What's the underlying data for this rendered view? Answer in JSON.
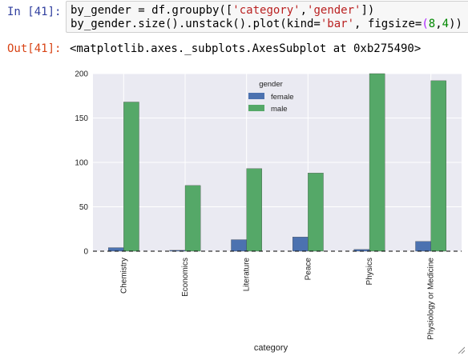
{
  "cell": {
    "in_prompt": "In [41]:",
    "code_line_1": {
      "prefix": "by_gender = df.groupby([",
      "str1": "'category'",
      "comma": ",",
      "str2": "'gender'",
      "suffix": "])"
    },
    "code_line_2": {
      "prefix": "by_gender.size().unstack().plot(kind=",
      "str1": "'bar'",
      "mid": ", figsize=",
      "eq": "=",
      "open": "(",
      "num1": "8",
      "comma": ",",
      "num2": "4",
      "close": "))"
    },
    "out_prompt": "Out[41]:",
    "output_text": "<matplotlib.axes._subplots.AxesSubplot at 0xb275490>"
  },
  "chart_data": {
    "type": "bar",
    "categories": [
      "Chemistry",
      "Economics",
      "Literature",
      "Peace",
      "Physics",
      "Physiology or Medicine"
    ],
    "series": [
      {
        "name": "female",
        "values": [
          4,
          1,
          13,
          16,
          2,
          11
        ],
        "color": "#4c72b0"
      },
      {
        "name": "male",
        "values": [
          168,
          74,
          93,
          88,
          200,
          192
        ],
        "color": "#55a868"
      }
    ],
    "xlabel": "category",
    "ylabel": "",
    "ylim": [
      0,
      200
    ],
    "yticks": [
      0,
      50,
      100,
      150,
      200
    ],
    "legend_title": "gender",
    "legend_position": "top-center",
    "grid": true,
    "background": "#eaeaf2"
  }
}
